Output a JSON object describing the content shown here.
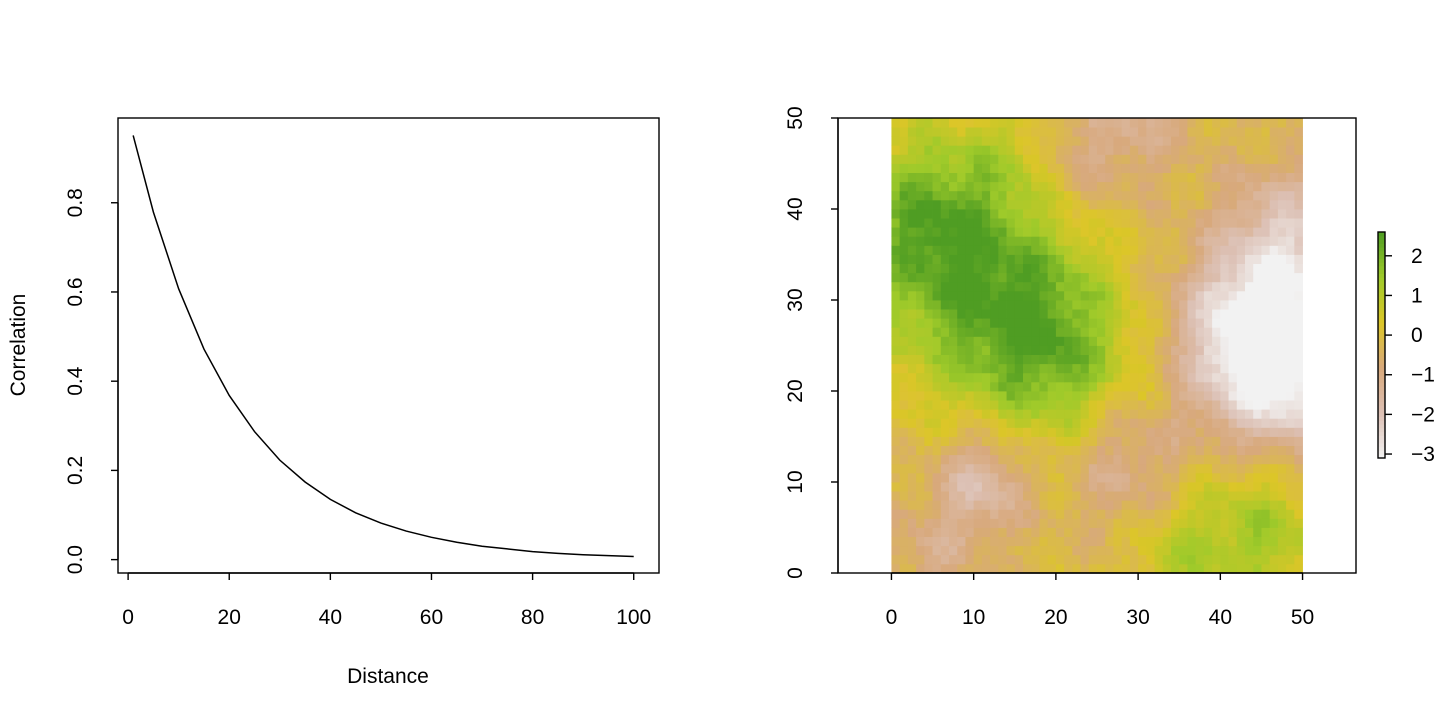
{
  "chart_data": [
    {
      "type": "line",
      "title": "",
      "xlabel": "Distance",
      "ylabel": "Correlation",
      "xlim": [
        -2,
        105
      ],
      "ylim": [
        -0.03,
        0.99
      ],
      "xticks": [
        "0",
        "20",
        "40",
        "60",
        "80",
        "100"
      ],
      "yticks": [
        "0.0",
        "0.2",
        "0.4",
        "0.6",
        "0.8"
      ],
      "series": [
        {
          "x": [
            1,
            5,
            10,
            15,
            20,
            25,
            30,
            35,
            40,
            45,
            50,
            55,
            60,
            65,
            70,
            75,
            80,
            85,
            90,
            95,
            100
          ],
          "y": [
            0.951,
            0.779,
            0.607,
            0.472,
            0.368,
            0.287,
            0.223,
            0.174,
            0.135,
            0.105,
            0.082,
            0.064,
            0.05,
            0.039,
            0.03,
            0.024,
            0.018,
            0.014,
            0.011,
            0.009,
            0.007
          ]
        }
      ],
      "grid": false
    },
    {
      "type": "heatmap",
      "title": "",
      "xlabel": "",
      "ylabel": "",
      "xlim": [
        -6.5,
        56.5
      ],
      "ylim": [
        0,
        50
      ],
      "grid_extent": [
        0,
        50
      ],
      "grid_cells": 50,
      "xticks": [
        "0",
        "10",
        "20",
        "30",
        "40",
        "50"
      ],
      "yticks": [
        "0",
        "10",
        "20",
        "30",
        "40",
        "50"
      ],
      "color_scale": {
        "min": -3.1,
        "max": 2.6,
        "ticks": [
          "2",
          "1",
          "0",
          "−1",
          "−2",
          "−3"
        ],
        "stops": [
          "#f2f2f2",
          "#dcc0b4",
          "#d8a97c",
          "#dcc628",
          "#9fca2a",
          "#4f9d23"
        ]
      },
      "field_sources": [
        {
          "x": 10,
          "y": 33,
          "amp": 2.3,
          "r": 9
        },
        {
          "x": 20,
          "y": 24,
          "amp": 1.8,
          "r": 7
        },
        {
          "x": 3,
          "y": 40,
          "amp": 1.2,
          "r": 6
        },
        {
          "x": 45,
          "y": 5,
          "amp": 1.5,
          "r": 6
        },
        {
          "x": 35,
          "y": 2,
          "amp": 0.9,
          "r": 4
        },
        {
          "x": 48,
          "y": 23,
          "amp": -3.2,
          "r": 7
        },
        {
          "x": 43,
          "y": 28,
          "amp": -1.8,
          "r": 6
        },
        {
          "x": 48,
          "y": 38,
          "amp": -1.5,
          "r": 5
        },
        {
          "x": 11,
          "y": 10,
          "amp": -1.7,
          "r": 4
        },
        {
          "x": 28,
          "y": 12,
          "amp": -1.1,
          "r": 5
        },
        {
          "x": 22,
          "y": 45,
          "amp": -0.8,
          "r": 5
        },
        {
          "x": 30,
          "y": 50,
          "amp": -0.9,
          "r": 5
        },
        {
          "x": 5,
          "y": 2,
          "amp": -0.8,
          "r": 4
        },
        {
          "x": 15,
          "y": 46,
          "amp": 0.6,
          "r": 4
        }
      ],
      "field_base": -0.15
    }
  ]
}
